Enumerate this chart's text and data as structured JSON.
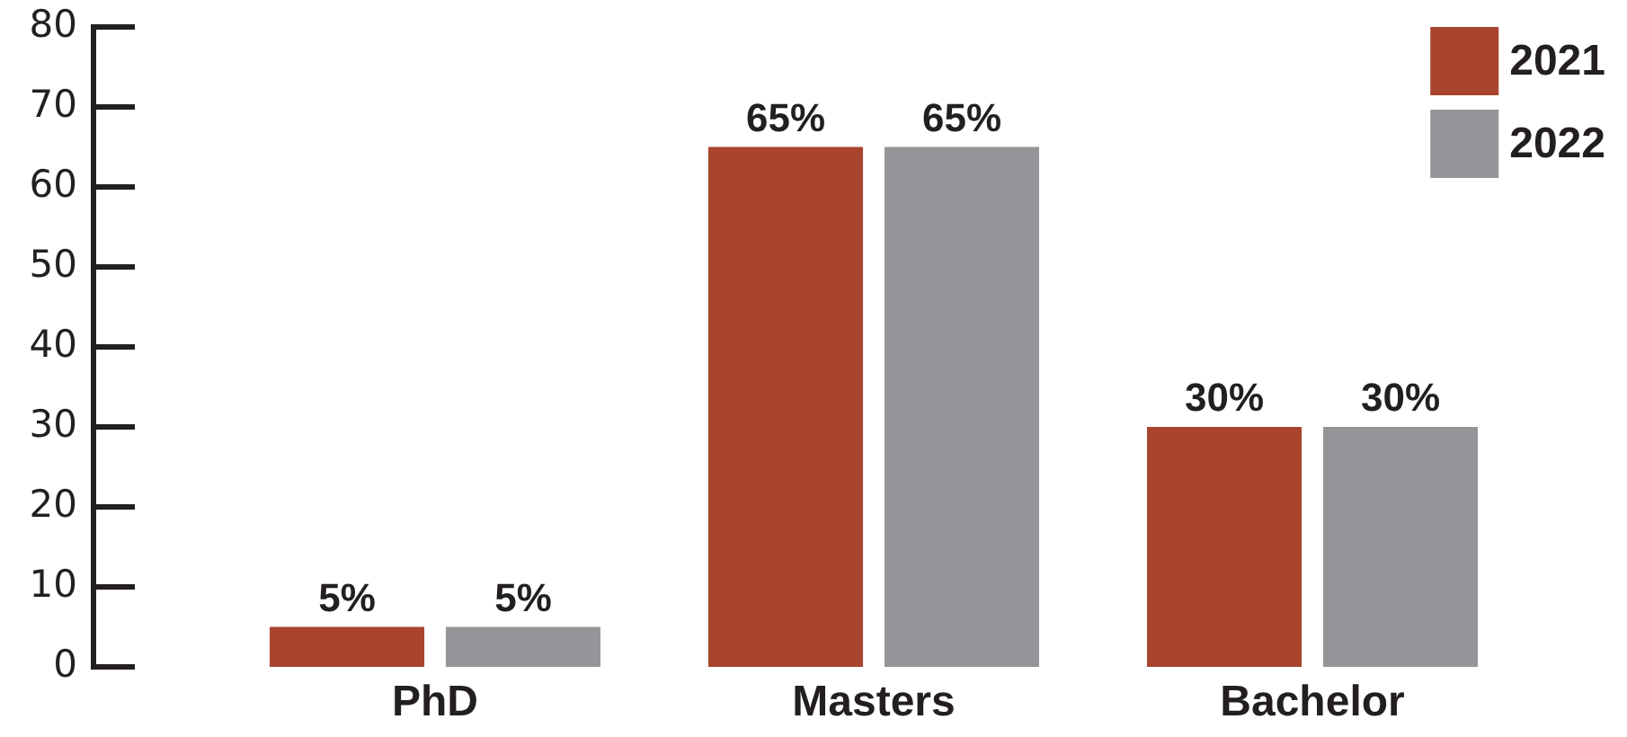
{
  "chart_data": {
    "type": "bar",
    "categories": [
      "PhD",
      "Masters",
      "Bachelor"
    ],
    "series": [
      {
        "name": "2021",
        "color": "#a9452f",
        "values": [
          5,
          65,
          30
        ],
        "value_labels": [
          "5%",
          "65%",
          "30%"
        ]
      },
      {
        "name": "2022",
        "color": "#939598",
        "values": [
          5,
          65,
          30
        ],
        "value_labels": [
          "5%",
          "65%",
          "30%"
        ]
      }
    ],
    "ylim": [
      0,
      80
    ],
    "yticks": [
      0,
      10,
      20,
      30,
      40,
      50,
      60,
      70,
      80
    ],
    "grid": false,
    "legend": "top right"
  }
}
